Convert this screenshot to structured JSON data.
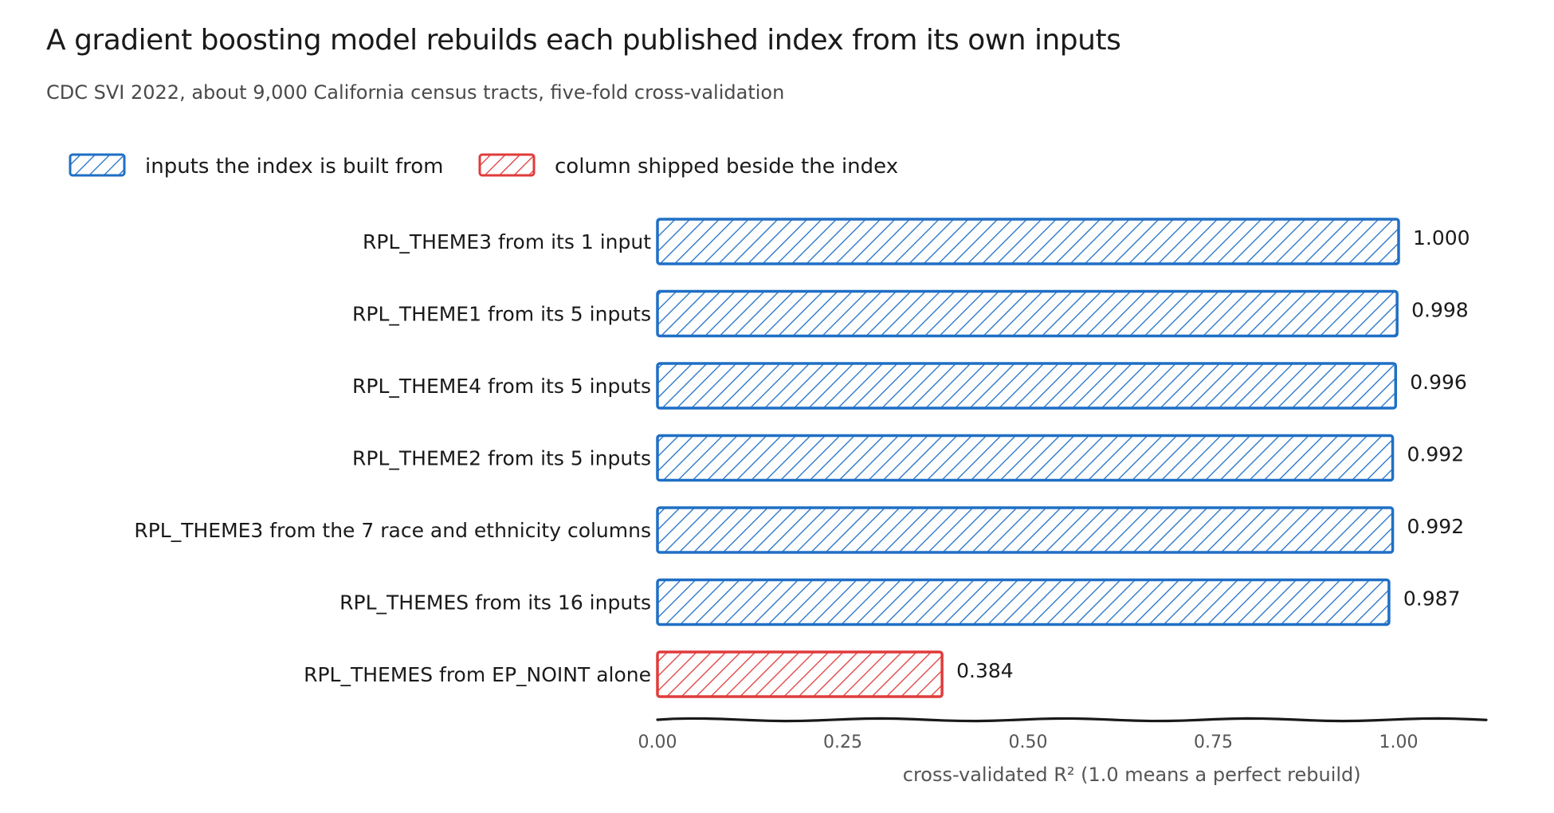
{
  "chart_data": {
    "type": "bar",
    "orientation": "horizontal",
    "title": "A gradient boosting model rebuilds each published index from its own inputs",
    "subtitle": "CDC SVI 2022, about 9,000 California census tracts, five-fold cross-validation",
    "xlabel": "cross-validated R²  (1.0 means a perfect rebuild)",
    "xlim": [
      0,
      1.12
    ],
    "xticks": [
      0.0,
      0.25,
      0.5,
      0.75,
      1.0
    ],
    "xtick_labels": [
      "0.00",
      "0.25",
      "0.50",
      "0.75",
      "1.00"
    ],
    "grid": false,
    "legend_position": "top-left",
    "legend": [
      {
        "label": "inputs the index is built from",
        "color": "#1f6fc5"
      },
      {
        "label": "column shipped beside the index",
        "color": "#e03b3b"
      }
    ],
    "categories": [
      "RPL_THEME3 from its 1 input",
      "RPL_THEME1 from its 5 inputs",
      "RPL_THEME4 from its 5 inputs",
      "RPL_THEME2 from its 5 inputs",
      "RPL_THEME3 from the 7 race and ethnicity columns",
      "RPL_THEMES from its 16 inputs",
      "RPL_THEMES from EP_NOINT alone"
    ],
    "values": [
      1.0,
      0.998,
      0.996,
      0.992,
      0.992,
      0.987,
      0.384
    ],
    "value_labels": [
      "1.000",
      "0.998",
      "0.996",
      "0.992",
      "0.992",
      "0.987",
      "0.384"
    ],
    "groups": [
      0,
      0,
      0,
      0,
      0,
      0,
      1
    ]
  }
}
